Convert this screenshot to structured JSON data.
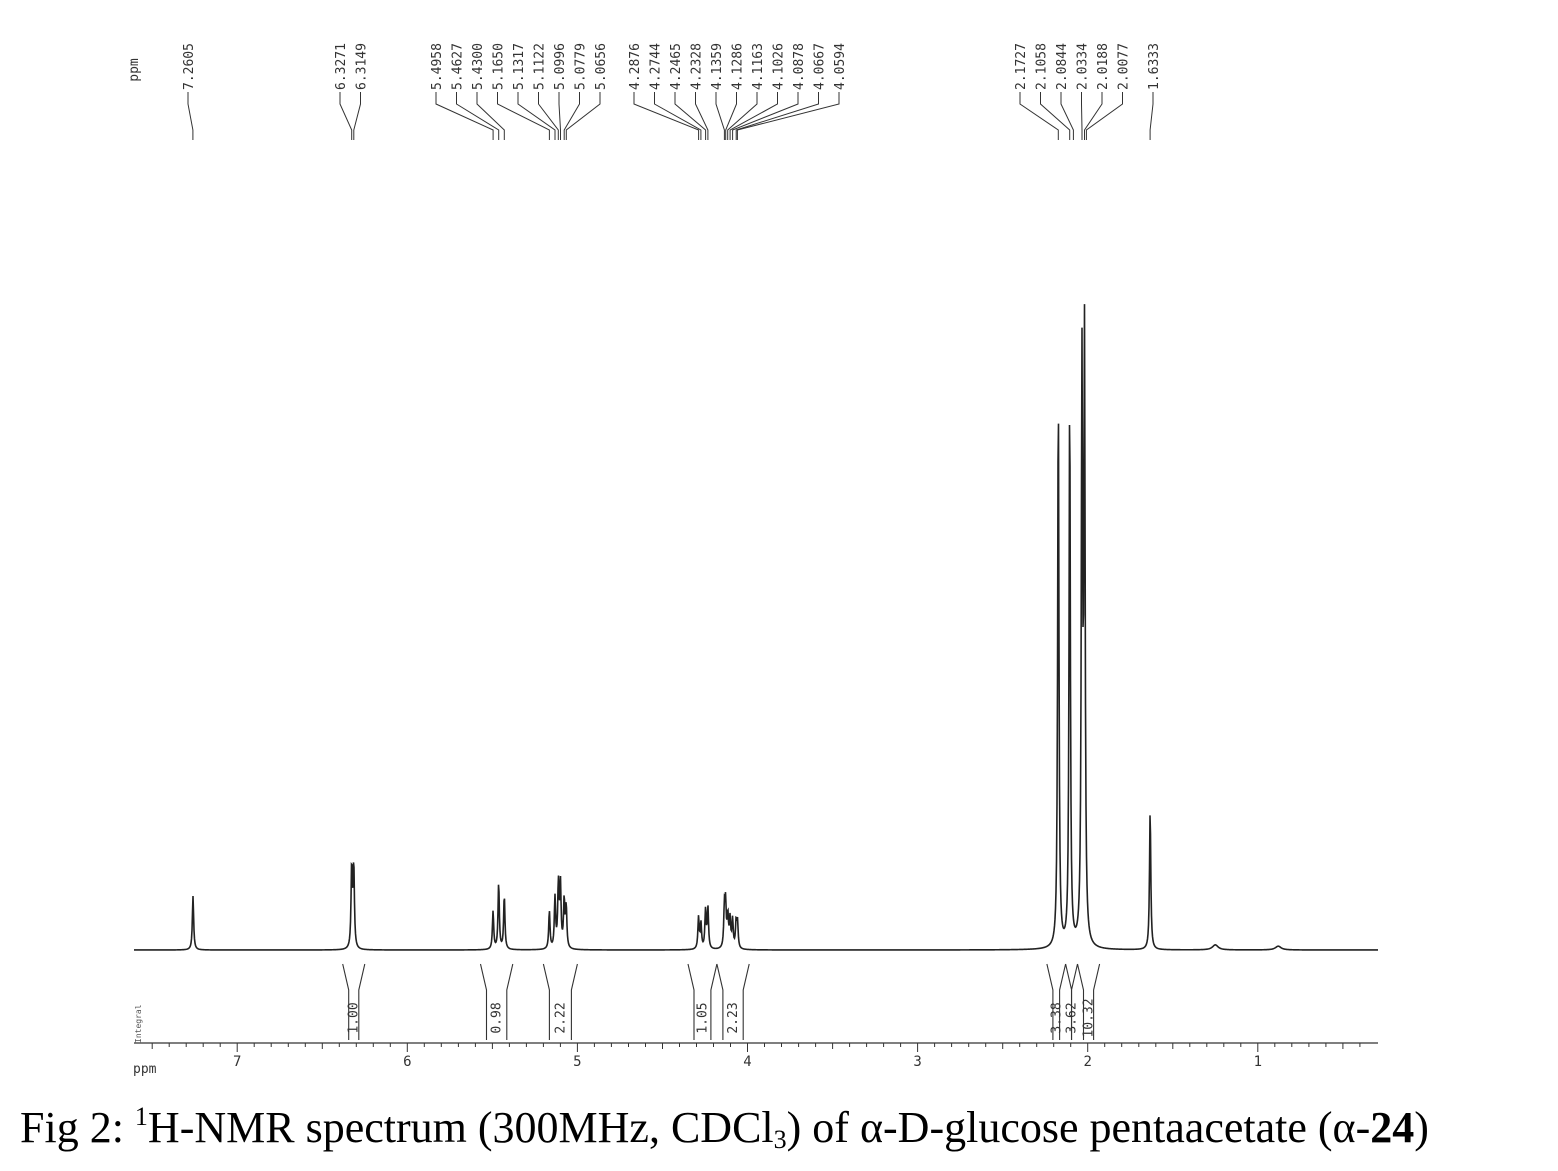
{
  "chart_data": {
    "type": "line",
    "title": "Fig 2: 1H-NMR spectrum (300MHz, CDCl3) of α-D-glucose pentaacetate (α-24)",
    "xlabel": "ppm",
    "top_axis_label": "ppm",
    "integral_label": "Integral",
    "xlim": [
      7.6,
      0.35
    ],
    "x_reversed": true,
    "x_ticks": [
      7,
      6,
      5,
      4,
      3,
      2,
      1
    ],
    "peak_labels": [
      "7.2605",
      "6.3271",
      "6.3149",
      "5.4958",
      "5.4627",
      "5.4300",
      "5.1650",
      "5.1317",
      "5.1122",
      "5.0996",
      "5.0779",
      "5.0656",
      "4.2876",
      "4.2744",
      "4.2465",
      "4.2328",
      "4.1359",
      "4.1286",
      "4.1163",
      "4.1026",
      "4.0878",
      "4.0667",
      "4.0594",
      "2.1727",
      "2.1058",
      "2.0844",
      "2.0334",
      "2.0188",
      "2.0077",
      "1.6333"
    ],
    "peaks": [
      {
        "ppm": 7.26,
        "height": 0.085
      },
      {
        "ppm": 6.327,
        "height": 0.13
      },
      {
        "ppm": 6.315,
        "height": 0.13
      },
      {
        "ppm": 5.496,
        "height": 0.06
      },
      {
        "ppm": 5.463,
        "height": 0.105
      },
      {
        "ppm": 5.43,
        "height": 0.085
      },
      {
        "ppm": 5.165,
        "height": 0.06
      },
      {
        "ppm": 5.132,
        "height": 0.08
      },
      {
        "ppm": 5.112,
        "height": 0.1
      },
      {
        "ppm": 5.1,
        "height": 0.1
      },
      {
        "ppm": 5.078,
        "height": 0.075
      },
      {
        "ppm": 5.066,
        "height": 0.065
      },
      {
        "ppm": 4.288,
        "height": 0.05
      },
      {
        "ppm": 4.274,
        "height": 0.04
      },
      {
        "ppm": 4.247,
        "height": 0.06
      },
      {
        "ppm": 4.233,
        "height": 0.065
      },
      {
        "ppm": 4.136,
        "height": 0.06
      },
      {
        "ppm": 4.129,
        "height": 0.065
      },
      {
        "ppm": 4.116,
        "height": 0.05
      },
      {
        "ppm": 4.103,
        "height": 0.045
      },
      {
        "ppm": 4.088,
        "height": 0.045
      },
      {
        "ppm": 4.067,
        "height": 0.04
      },
      {
        "ppm": 4.059,
        "height": 0.04
      },
      {
        "ppm": 2.173,
        "height": 0.88
      },
      {
        "ppm": 2.106,
        "height": 0.87
      },
      {
        "ppm": 2.034,
        "height": 0.9
      },
      {
        "ppm": 2.019,
        "height": 0.94
      },
      {
        "ppm": 1.633,
        "height": 0.22
      },
      {
        "ppm": 1.25,
        "height": 0.008
      },
      {
        "ppm": 0.88,
        "height": 0.006
      }
    ],
    "integrals": [
      {
        "from": 6.38,
        "to": 6.25,
        "value": "1.00"
      },
      {
        "from": 5.57,
        "to": 5.38,
        "value": "0.98"
      },
      {
        "from": 5.2,
        "to": 5.0,
        "value": "2.22"
      },
      {
        "from": 4.35,
        "to": 4.18,
        "value": "1.05"
      },
      {
        "from": 4.18,
        "to": 3.99,
        "value": "2.23"
      },
      {
        "from": 2.24,
        "to": 2.13,
        "value": "3.38"
      },
      {
        "from": 2.13,
        "to": 2.06,
        "value": "3.62"
      },
      {
        "from": 2.06,
        "to": 1.93,
        "value": "10.32"
      }
    ]
  },
  "caption": {
    "prefix": "Fig 2: ",
    "sup": "1",
    "part1": "H-NMR spectrum (300MHz, CDCl",
    "sub": "3",
    "part2": ") of α-D-glucose pentaacetate (α-",
    "bold": "24",
    "part3": ")"
  }
}
